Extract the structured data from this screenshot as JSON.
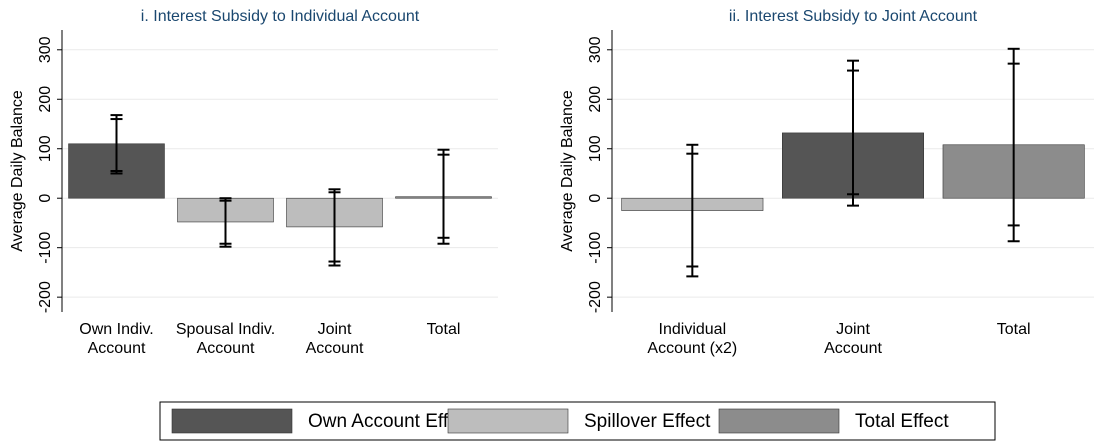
{
  "chart_data": [
    {
      "type": "bar",
      "title": "i. Interest Subsidy to Individual Account",
      "y_label": "Average Daily Balance",
      "categories": [
        [
          "Own Indiv.",
          "Account"
        ],
        [
          "Spousal Indiv.",
          "Account"
        ],
        [
          "Joint",
          "Account"
        ],
        [
          "Total"
        ]
      ],
      "series": [
        {
          "name": "Own Account Effect",
          "color": "#555555",
          "values": [
            110,
            null,
            null,
            null
          ]
        },
        {
          "name": "Spillover Effect",
          "color": "#bdbdbd",
          "values": [
            null,
            -48,
            -58,
            null
          ]
        },
        {
          "name": "Total Effect",
          "color": "#8c8c8c",
          "values": [
            null,
            null,
            null,
            3
          ]
        }
      ],
      "ci95": [
        [
          50,
          168
        ],
        [
          -98,
          0
        ],
        [
          -136,
          18
        ],
        [
          -92,
          98
        ]
      ],
      "ci90": [
        [
          55,
          160
        ],
        [
          -92,
          -5
        ],
        [
          -128,
          12
        ],
        [
          -80,
          88
        ]
      ],
      "ylim": [
        -230,
        340
      ],
      "yticks": [
        -200,
        -100,
        0,
        100,
        200,
        300
      ],
      "grid": true
    },
    {
      "type": "bar",
      "title": "ii. Interest Subsidy to Joint Account",
      "y_label": "Average Daily Balance",
      "categories": [
        [
          "Individual",
          "Account (x2)"
        ],
        [
          "Joint",
          "Account"
        ],
        [
          "Total"
        ]
      ],
      "series": [
        {
          "name": "Own Account Effect",
          "color": "#555555",
          "values": [
            null,
            132,
            null
          ]
        },
        {
          "name": "Spillover Effect",
          "color": "#bdbdbd",
          "values": [
            -25,
            null,
            null
          ]
        },
        {
          "name": "Total Effect",
          "color": "#8c8c8c",
          "values": [
            null,
            null,
            108
          ]
        }
      ],
      "ci95": [
        [
          -158,
          108
        ],
        [
          -15,
          278
        ],
        [
          -87,
          302
        ]
      ],
      "ci90": [
        [
          -138,
          90
        ],
        [
          8,
          258
        ],
        [
          -55,
          272
        ]
      ],
      "ylim": [
        -230,
        340
      ],
      "yticks": [
        -200,
        -100,
        0,
        100,
        200,
        300
      ],
      "grid": true
    }
  ]
}
